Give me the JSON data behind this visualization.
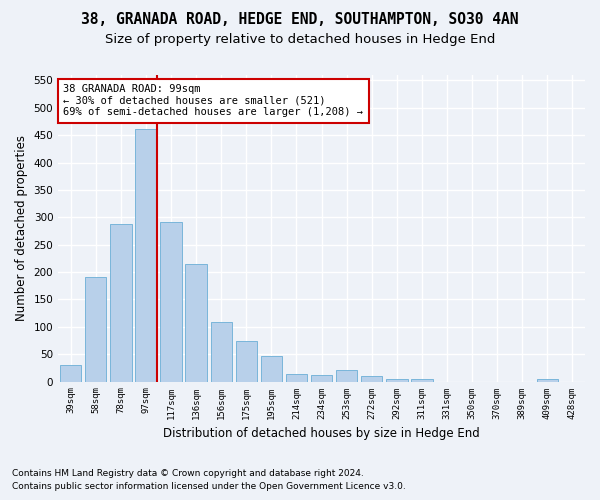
{
  "title1": "38, GRANADA ROAD, HEDGE END, SOUTHAMPTON, SO30 4AN",
  "title2": "Size of property relative to detached houses in Hedge End",
  "xlabel": "Distribution of detached houses by size in Hedge End",
  "ylabel": "Number of detached properties",
  "categories": [
    "39sqm",
    "58sqm",
    "78sqm",
    "97sqm",
    "117sqm",
    "136sqm",
    "156sqm",
    "175sqm",
    "195sqm",
    "214sqm",
    "234sqm",
    "253sqm",
    "272sqm",
    "292sqm",
    "311sqm",
    "331sqm",
    "350sqm",
    "370sqm",
    "389sqm",
    "409sqm",
    "428sqm"
  ],
  "values": [
    30,
    191,
    287,
    462,
    291,
    214,
    109,
    74,
    46,
    13,
    12,
    21,
    10,
    5,
    5,
    0,
    0,
    0,
    0,
    5,
    0
  ],
  "bar_color": "#b8d0ea",
  "bar_edgecolor": "#6aaed6",
  "highlight_bar_idx": 3,
  "highlight_color": "#cc0000",
  "annotation_text": "38 GRANADA ROAD: 99sqm\n← 30% of detached houses are smaller (521)\n69% of semi-detached houses are larger (1,208) →",
  "annotation_box_color": "#ffffff",
  "annotation_box_edgecolor": "#cc0000",
  "ylim": [
    0,
    560
  ],
  "yticks": [
    0,
    50,
    100,
    150,
    200,
    250,
    300,
    350,
    400,
    450,
    500,
    550
  ],
  "footnote1": "Contains HM Land Registry data © Crown copyright and database right 2024.",
  "footnote2": "Contains public sector information licensed under the Open Government Licence v3.0.",
  "background_color": "#eef2f8",
  "grid_color": "#ffffff",
  "title1_fontsize": 10.5,
  "title2_fontsize": 9.5,
  "xlabel_fontsize": 8.5,
  "ylabel_fontsize": 8.5,
  "footnote_fontsize": 6.5
}
